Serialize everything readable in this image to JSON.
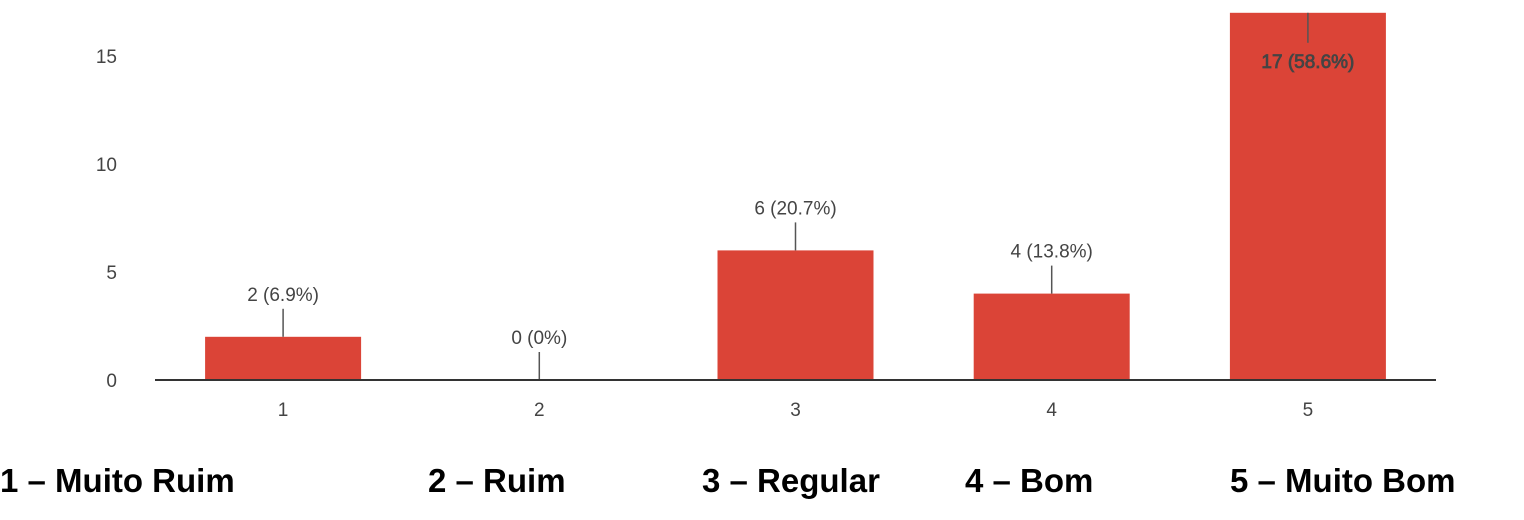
{
  "chart_data": {
    "type": "bar",
    "categories": [
      "1",
      "2",
      "3",
      "4",
      "5"
    ],
    "values": [
      2,
      0,
      6,
      4,
      17
    ],
    "data_labels": [
      "2 (6.9%)",
      "0 (0%)",
      "6 (20.7%)",
      "4 (13.8%)",
      "17 (58.6%)"
    ],
    "y_ticks": [
      0,
      5,
      10,
      15
    ],
    "ylim": [
      0,
      17
    ],
    "grid": false,
    "bar_color": "#db4437"
  },
  "legend": {
    "items": [
      "1 – Muito Ruim",
      "2 – Ruim",
      "3 – Regular",
      "4 – Bom",
      "5 – Muito Bom"
    ]
  }
}
